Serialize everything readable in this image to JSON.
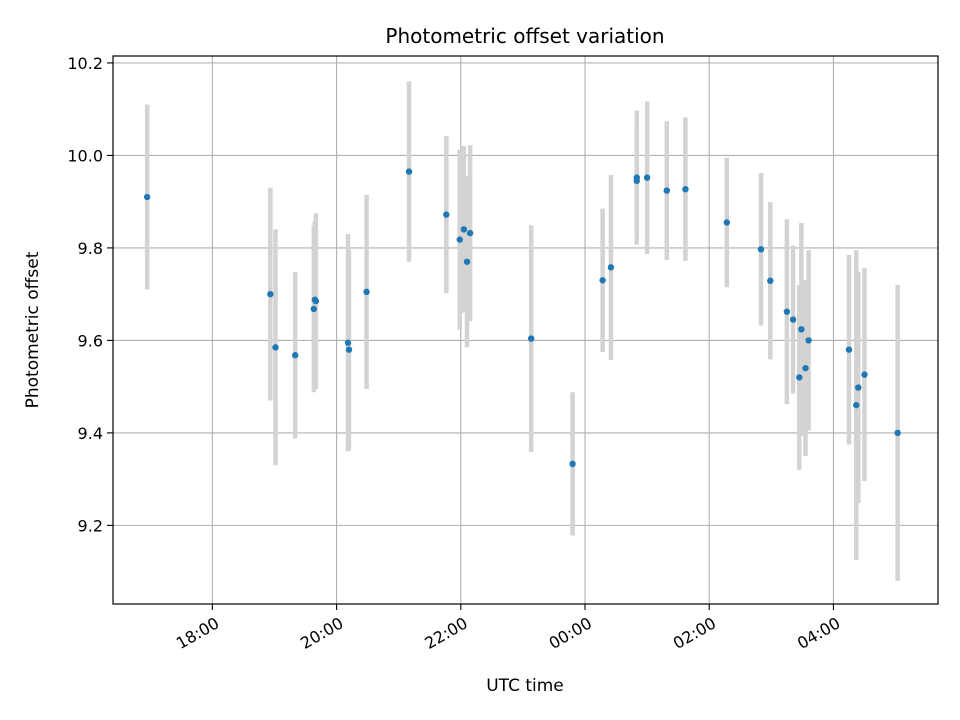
{
  "chart_data": {
    "type": "scatter",
    "title": "Photometric offset variation",
    "xlabel": "UTC time",
    "ylabel": "Photometric offset",
    "x_axis_type": "time",
    "x_tick_labels": [
      "18:00",
      "20:00",
      "22:00",
      "00:00",
      "02:00",
      "04:00"
    ],
    "y_ticks": [
      9.2,
      9.4,
      9.6,
      9.8,
      10.0,
      10.2
    ],
    "y_tick_labels": [
      "9.2",
      "9.4",
      "9.6",
      "9.8",
      "10.0",
      "10.2"
    ],
    "ylim": [
      9.03,
      10.215
    ],
    "xlim": [
      "16:24",
      "05:41"
    ],
    "grid": true,
    "point_color": "#1f77b4",
    "errorbar_color": "#d3d3d3",
    "series": [
      {
        "points": [
          {
            "x": "16:57",
            "y": 9.91,
            "err": 0.2
          },
          {
            "x": "18:56",
            "y": 9.7,
            "err": 0.23
          },
          {
            "x": "19:01",
            "y": 9.585,
            "err": 0.255
          },
          {
            "x": "19:20",
            "y": 9.568,
            "err": 0.18
          },
          {
            "x": "19:39",
            "y": 9.688,
            "err": 0.17
          },
          {
            "x": "19:38",
            "y": 9.668,
            "err": 0.18
          },
          {
            "x": "19:40",
            "y": 9.685,
            "err": 0.19
          },
          {
            "x": "20:11",
            "y": 9.595,
            "err": 0.235
          },
          {
            "x": "20:12",
            "y": 9.58,
            "err": 0.215
          },
          {
            "x": "20:29",
            "y": 9.705,
            "err": 0.21
          },
          {
            "x": "21:10",
            "y": 9.965,
            "err": 0.195
          },
          {
            "x": "21:46",
            "y": 9.872,
            "err": 0.17
          },
          {
            "x": "21:59",
            "y": 9.818,
            "err": 0.195
          },
          {
            "x": "22:03",
            "y": 9.84,
            "err": 0.18
          },
          {
            "x": "22:06",
            "y": 9.77,
            "err": 0.185
          },
          {
            "x": "22:09",
            "y": 9.832,
            "err": 0.19
          },
          {
            "x": "23:08",
            "y": 9.604,
            "err": 0.245
          },
          {
            "x": "23:48",
            "y": 9.333,
            "err": 0.155
          },
          {
            "x": "00:17",
            "y": 9.73,
            "err": 0.155
          },
          {
            "x": "00:25",
            "y": 9.758,
            "err": 0.2
          },
          {
            "x": "00:50",
            "y": 9.952,
            "err": 0.145
          },
          {
            "x": "00:50",
            "y": 9.945,
            "err": 0.1
          },
          {
            "x": "01:00",
            "y": 9.952,
            "err": 0.165
          },
          {
            "x": "01:19",
            "y": 9.924,
            "err": 0.15
          },
          {
            "x": "01:37",
            "y": 9.927,
            "err": 0.155
          },
          {
            "x": "02:17",
            "y": 9.855,
            "err": 0.14
          },
          {
            "x": "02:50",
            "y": 9.797,
            "err": 0.165
          },
          {
            "x": "02:59",
            "y": 9.729,
            "err": 0.17
          },
          {
            "x": "03:15",
            "y": 9.662,
            "err": 0.2
          },
          {
            "x": "03:21",
            "y": 9.645,
            "err": 0.16
          },
          {
            "x": "03:27",
            "y": 9.52,
            "err": 0.2
          },
          {
            "x": "03:29",
            "y": 9.624,
            "err": 0.23
          },
          {
            "x": "03:33",
            "y": 9.54,
            "err": 0.19
          },
          {
            "x": "03:36",
            "y": 9.6,
            "err": 0.195
          },
          {
            "x": "04:15",
            "y": 9.58,
            "err": 0.205
          },
          {
            "x": "04:22",
            "y": 9.46,
            "err": 0.335
          },
          {
            "x": "04:24",
            "y": 9.498,
            "err": 0.25
          },
          {
            "x": "04:30",
            "y": 9.526,
            "err": 0.23
          },
          {
            "x": "05:02",
            "y": 9.4,
            "err": 0.32
          }
        ]
      }
    ]
  }
}
